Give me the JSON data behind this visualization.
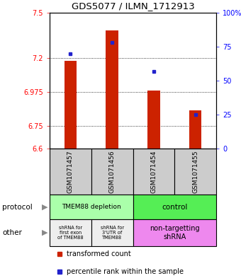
{
  "title": "GDS5077 / ILMN_1712913",
  "samples": [
    "GSM1071457",
    "GSM1071456",
    "GSM1071454",
    "GSM1071455"
  ],
  "red_values": [
    7.18,
    7.385,
    6.985,
    6.855
  ],
  "blue_values": [
    70,
    78,
    57,
    25
  ],
  "ylim_left": [
    6.6,
    7.5
  ],
  "ylim_right": [
    0,
    100
  ],
  "yticks_left": [
    6.6,
    6.75,
    6.975,
    7.2,
    7.5
  ],
  "yticks_right": [
    0,
    25,
    50,
    75,
    100
  ],
  "bar_color": "#cc2200",
  "blue_marker_color": "#2222cc",
  "sample_cell_color": "#cccccc",
  "protocol_color_left": "#aaffaa",
  "protocol_color_right": "#55ee55",
  "other_color_left": "#eeeeee",
  "other_color_right": "#ee88ee",
  "legend_red": "transformed count",
  "legend_blue": "percentile rank within the sample"
}
